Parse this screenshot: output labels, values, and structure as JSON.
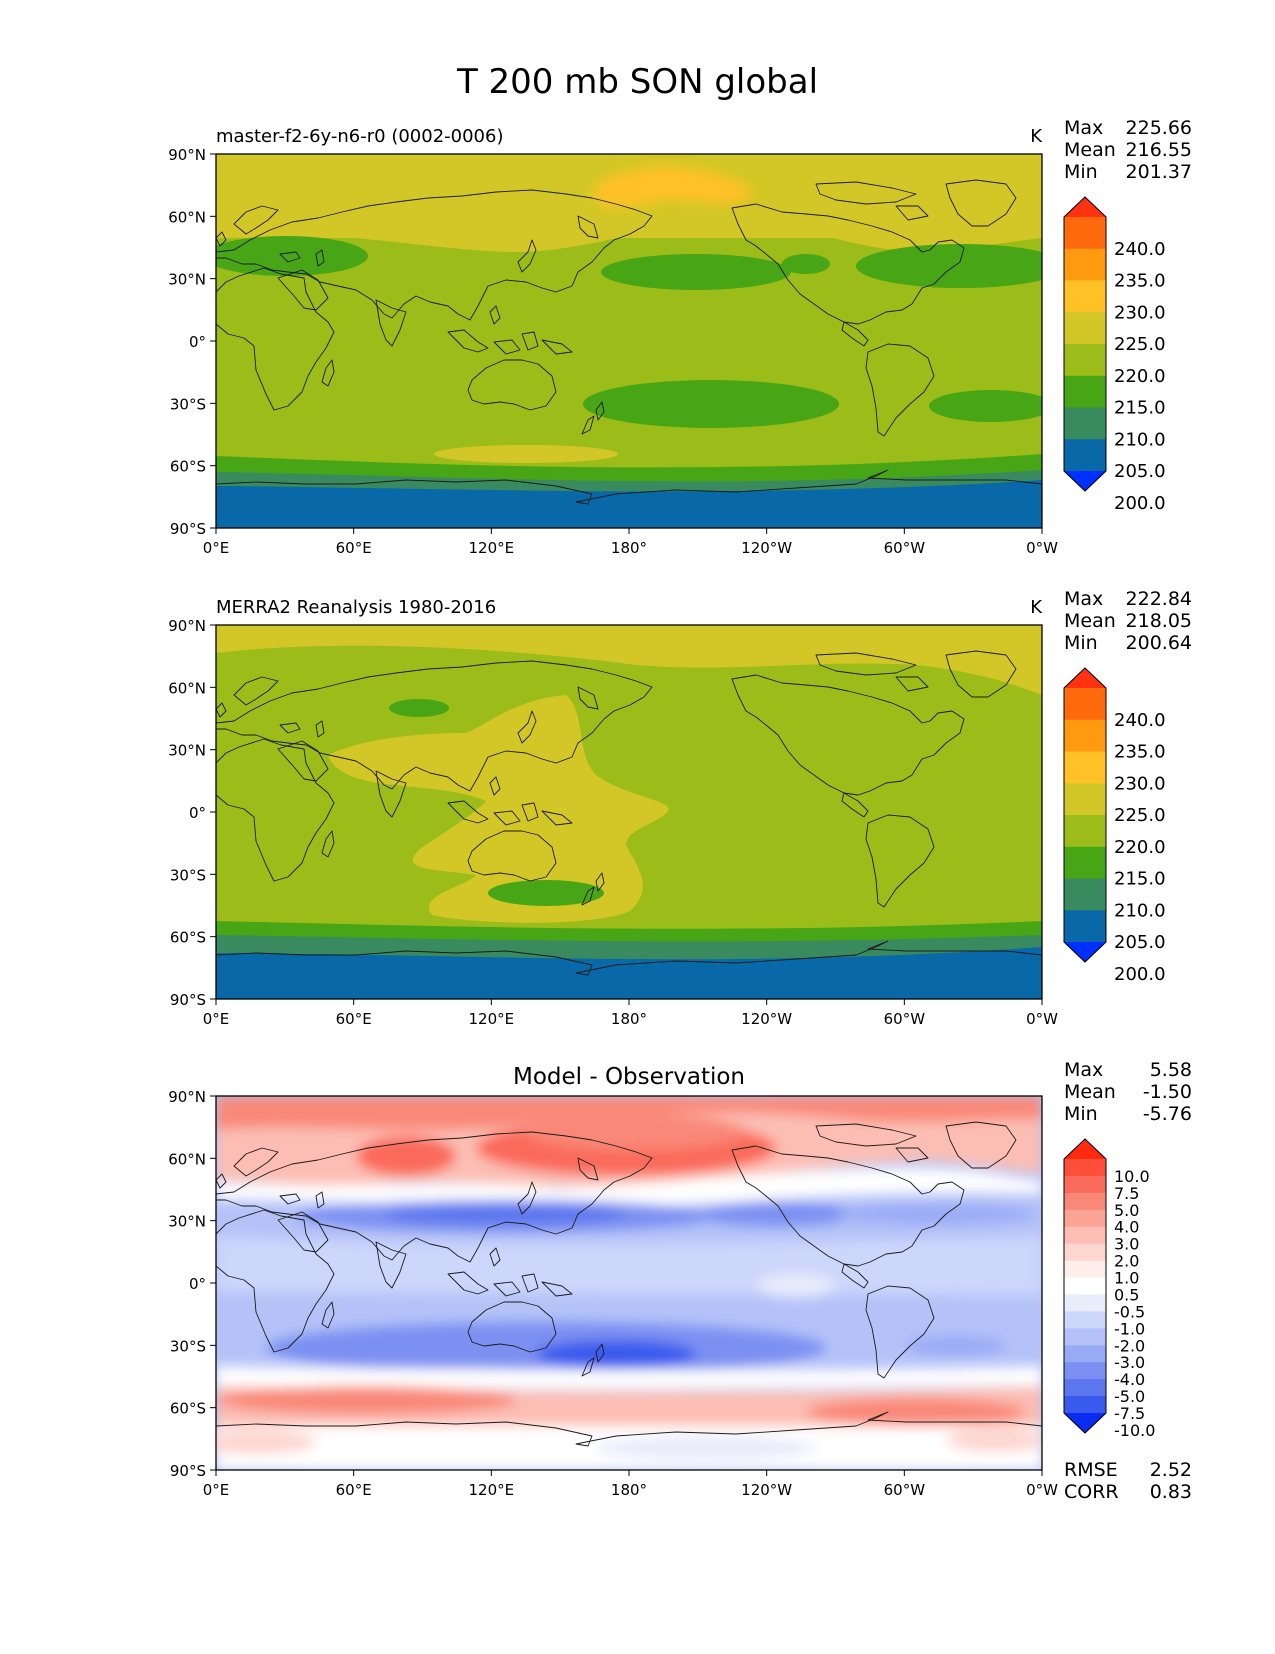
{
  "figure": {
    "title": "T 200 mb SON global"
  },
  "panels": [
    {
      "id": "model",
      "title_left": "master-f2-6y-n6-r0 (0002-0006)",
      "title_center": "",
      "units": "K",
      "stats": [
        {
          "label": "Max",
          "value": "225.66"
        },
        {
          "label": "Mean",
          "value": "216.55"
        },
        {
          "label": "Min",
          "value": "201.37"
        }
      ],
      "colorbar": {
        "labels": [
          "240.0",
          "235.0",
          "230.0",
          "225.0",
          "220.0",
          "215.0",
          "210.0",
          "205.0",
          "200.0"
        ],
        "colors": [
          "#ff3311",
          "#ff6a0e",
          "#ff9a10",
          "#ffc125",
          "#d2c726",
          "#9cbc1a",
          "#48a515",
          "#3a8a60",
          "#0868a8",
          "#0030ff"
        ]
      },
      "footer": []
    },
    {
      "id": "obs",
      "title_left": "MERRA2 Reanalysis 1980-2016",
      "title_center": "",
      "units": "K",
      "stats": [
        {
          "label": "Max",
          "value": "222.84"
        },
        {
          "label": "Mean",
          "value": "218.05"
        },
        {
          "label": "Min",
          "value": "200.64"
        }
      ],
      "colorbar": {
        "labels": [
          "240.0",
          "235.0",
          "230.0",
          "225.0",
          "220.0",
          "215.0",
          "210.0",
          "205.0",
          "200.0"
        ],
        "colors": [
          "#ff3311",
          "#ff6a0e",
          "#ff9a10",
          "#ffc125",
          "#d2c726",
          "#9cbc1a",
          "#48a515",
          "#3a8a60",
          "#0868a8",
          "#0030ff"
        ]
      },
      "footer": []
    },
    {
      "id": "diff",
      "title_left": "",
      "title_center": "Model - Observation",
      "units": "",
      "stats": [
        {
          "label": "Max",
          "value": "5.58"
        },
        {
          "label": "Mean",
          "value": "-1.50"
        },
        {
          "label": "Min",
          "value": "-5.76"
        }
      ],
      "colorbar": {
        "labels": [
          "10.0",
          "7.5",
          "5.0",
          "4.0",
          "3.0",
          "2.0",
          "1.0",
          "0.5",
          "-0.5",
          "-1.0",
          "-2.0",
          "-3.0",
          "-4.0",
          "-5.0",
          "-7.5",
          "-10.0"
        ],
        "colors": [
          "#ff2a10",
          "#ff4e3a",
          "#fa6a5a",
          "#f98878",
          "#fca396",
          "#fcbeb4",
          "#fdd6d0",
          "#fdeeea",
          "#ffffff",
          "#e8ecfb",
          "#cdd6fb",
          "#b4c2f8",
          "#9aabf6",
          "#7b90f2",
          "#5b76ef",
          "#3a5aee",
          "#0a2cf0"
        ]
      },
      "footer": [
        {
          "label": "RMSE",
          "value": "2.52"
        },
        {
          "label": "CORR",
          "value": "0.83"
        }
      ]
    }
  ],
  "axes": {
    "lat_ticks": [
      "90°N",
      "60°N",
      "30°N",
      "0°",
      "30°S",
      "60°S",
      "90°S"
    ],
    "lon_ticks": [
      "0°E",
      "60°E",
      "120°E",
      "180°",
      "120°W",
      "60°W",
      "0°W"
    ]
  }
}
